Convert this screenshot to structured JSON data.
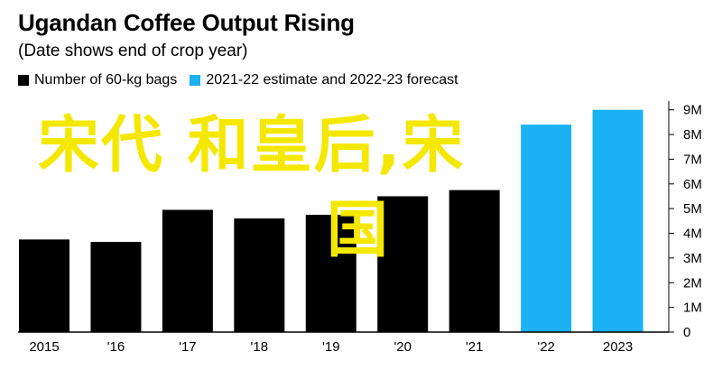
{
  "chart_data": {
    "type": "bar",
    "title": "Ugandan Coffee Output Rising",
    "subtitle": "(Date shows end of crop year)",
    "categories": [
      "2015",
      "'16",
      "'17",
      "'18",
      "'19",
      "'20",
      "'21",
      "'22",
      "2023"
    ],
    "values": [
      3.75,
      3.65,
      4.95,
      4.6,
      4.75,
      5.5,
      5.75,
      8.4,
      9.0
    ],
    "bar_types": [
      "actual",
      "actual",
      "actual",
      "actual",
      "actual",
      "actual",
      "actual",
      "forecast",
      "forecast"
    ],
    "series": [
      {
        "name": "Number of 60-kg bags",
        "color": "#000000"
      },
      {
        "name": "2021-22 estimate and 2022-23 forecast",
        "color": "#1ab2f5"
      }
    ],
    "y_ticks": [
      "0",
      "1M",
      "2M",
      "3M",
      "4M",
      "5M",
      "6M",
      "7M",
      "8M",
      "9M"
    ],
    "ylim": [
      0,
      9.5
    ],
    "y_axis_side": "right",
    "grid": false,
    "legend_position": "top-left"
  },
  "overlay": {
    "line1": "宋代 和皇后,宋",
    "line2": "国",
    "color": "#f5e800"
  }
}
